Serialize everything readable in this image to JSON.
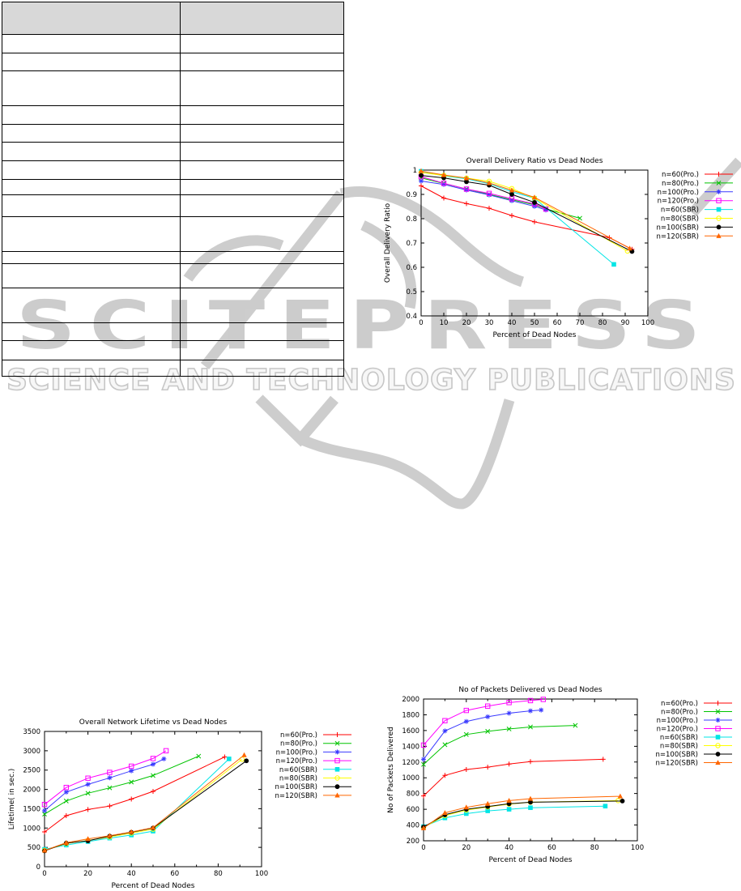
{
  "watermark": {
    "logo_text": "SCITEPRESS",
    "tagline": "SCIENCE AND TECHNOLOGY PUBLICATIONS",
    "color": "#cccccc"
  },
  "table": {
    "note": "empty two-column grid, gray header row, no visible text"
  },
  "chart_data": [
    {
      "type": "line",
      "title": "Overall Delivery Ratio vs Dead Nodes",
      "xlabel": "Percent of Dead Nodes",
      "ylabel": "Overall Delivery Ratio",
      "xlim": [
        0,
        100
      ],
      "ylim": [
        0.4,
        1.0
      ],
      "xticks": [
        0,
        10,
        20,
        30,
        40,
        50,
        60,
        70,
        80,
        90,
        100
      ],
      "xminor": [],
      "yticks": [
        0.4,
        0.5,
        0.6,
        0.7,
        0.8,
        0.9,
        1
      ],
      "grid": false,
      "legend_position": "right-outside",
      "series": [
        {
          "name": "n=60(Pro.)",
          "color": "#ff0000",
          "marker": "plus",
          "points": [
            [
              0,
              0.935
            ],
            [
              10,
              0.885
            ],
            [
              20,
              0.862
            ],
            [
              30,
              0.843
            ],
            [
              40,
              0.813
            ],
            [
              50,
              0.787
            ],
            [
              83,
              0.722
            ],
            [
              93,
              0.674
            ]
          ]
        },
        {
          "name": "n=80(Pro.)",
          "color": "#00c400",
          "marker": "cross",
          "points": [
            [
              0,
              0.968
            ],
            [
              10,
              0.945
            ],
            [
              20,
              0.922
            ],
            [
              30,
              0.9
            ],
            [
              40,
              0.878
            ],
            [
              50,
              0.857
            ],
            [
              55,
              0.84
            ],
            [
              70,
              0.802
            ]
          ]
        },
        {
          "name": "n=100(Pro.)",
          "color": "#3a3aff",
          "marker": "asterisk",
          "points": [
            [
              0,
              0.955
            ],
            [
              10,
              0.941
            ],
            [
              20,
              0.918
            ],
            [
              30,
              0.898
            ],
            [
              40,
              0.874
            ],
            [
              50,
              0.851
            ],
            [
              55,
              0.836
            ]
          ]
        },
        {
          "name": "n=120(Pro.)",
          "color": "#ff00ff",
          "marker": "square-open",
          "points": [
            [
              0,
              0.973
            ],
            [
              10,
              0.946
            ],
            [
              20,
              0.922
            ],
            [
              30,
              0.904
            ],
            [
              40,
              0.882
            ],
            [
              50,
              0.861
            ],
            [
              55,
              0.84
            ]
          ]
        },
        {
          "name": "n=60(SBR)",
          "color": "#00e5e5",
          "marker": "square-filled",
          "points": [
            [
              0,
              0.995
            ],
            [
              10,
              0.976
            ],
            [
              20,
              0.964
            ],
            [
              30,
              0.944
            ],
            [
              40,
              0.911
            ],
            [
              50,
              0.884
            ],
            [
              85,
              0.612
            ]
          ]
        },
        {
          "name": "n=80(SBR)",
          "color": "#ffff00",
          "marker": "circle-open",
          "points": [
            [
              0,
              0.99
            ],
            [
              10,
              0.978
            ],
            [
              20,
              0.967
            ],
            [
              30,
              0.954
            ],
            [
              40,
              0.924
            ],
            [
              50,
              0.884
            ],
            [
              91,
              0.667
            ]
          ]
        },
        {
          "name": "n=100(SBR)",
          "color": "#000000",
          "marker": "circle-filled",
          "points": [
            [
              0,
              0.978
            ],
            [
              10,
              0.968
            ],
            [
              20,
              0.952
            ],
            [
              30,
              0.938
            ],
            [
              40,
              0.9
            ],
            [
              50,
              0.867
            ],
            [
              93,
              0.665
            ]
          ]
        },
        {
          "name": "n=120(SBR)",
          "color": "#ff6600",
          "marker": "triangle-filled",
          "points": [
            [
              0,
              0.996
            ],
            [
              10,
              0.98
            ],
            [
              20,
              0.967
            ],
            [
              30,
              0.947
            ],
            [
              40,
              0.917
            ],
            [
              50,
              0.888
            ],
            [
              92,
              0.678
            ]
          ]
        }
      ]
    },
    {
      "type": "line",
      "title": "Overall Network Lifetime vs Dead Nodes",
      "xlabel": "Percent of Dead Nodes",
      "ylabel": "Lifetime( in sec.)",
      "xlim": [
        0,
        100
      ],
      "ylim": [
        0,
        3500
      ],
      "xticks": [
        0,
        20,
        40,
        60,
        80,
        100
      ],
      "xminor": [
        10,
        30,
        50,
        70,
        90
      ],
      "yticks": [
        0,
        500,
        1000,
        1500,
        2000,
        2500,
        3000,
        3500
      ],
      "grid": false,
      "legend_position": "right-outside",
      "series": [
        {
          "name": "n=60(Pro.)",
          "color": "#ff0000",
          "marker": "plus",
          "points": [
            [
              0,
              900
            ],
            [
              10,
              1320
            ],
            [
              20,
              1480
            ],
            [
              30,
              1570
            ],
            [
              40,
              1750
            ],
            [
              50,
              1950
            ],
            [
              83,
              2840
            ]
          ]
        },
        {
          "name": "n=80(Pro.)",
          "color": "#00c400",
          "marker": "cross",
          "points": [
            [
              0,
              1360
            ],
            [
              10,
              1700
            ],
            [
              20,
              1900
            ],
            [
              30,
              2040
            ],
            [
              40,
              2190
            ],
            [
              50,
              2360
            ],
            [
              71,
              2860
            ]
          ]
        },
        {
          "name": "n=100(Pro.)",
          "color": "#3a3aff",
          "marker": "asterisk",
          "points": [
            [
              0,
              1450
            ],
            [
              10,
              1930
            ],
            [
              20,
              2130
            ],
            [
              30,
              2300
            ],
            [
              40,
              2480
            ],
            [
              50,
              2650
            ],
            [
              55,
              2790
            ]
          ]
        },
        {
          "name": "n=120(Pro.)",
          "color": "#ff00ff",
          "marker": "square-open",
          "points": [
            [
              0,
              1610
            ],
            [
              10,
              2050
            ],
            [
              20,
              2290
            ],
            [
              30,
              2440
            ],
            [
              40,
              2600
            ],
            [
              50,
              2800
            ],
            [
              56,
              3000
            ]
          ]
        },
        {
          "name": "n=60(SBR)",
          "color": "#00e5e5",
          "marker": "square-filled",
          "points": [
            [
              0,
              450
            ],
            [
              10,
              560
            ],
            [
              20,
              650
            ],
            [
              30,
              740
            ],
            [
              40,
              820
            ],
            [
              50,
              920
            ],
            [
              85,
              2790
            ]
          ]
        },
        {
          "name": "n=80(SBR)",
          "color": "#ffff00",
          "marker": "circle-open",
          "points": [
            [
              0,
              420
            ],
            [
              10,
              600
            ],
            [
              20,
              680
            ],
            [
              30,
              770
            ],
            [
              40,
              870
            ],
            [
              50,
              970
            ],
            [
              91,
              2780
            ]
          ]
        },
        {
          "name": "n=100(SBR)",
          "color": "#000000",
          "marker": "circle-filled",
          "points": [
            [
              0,
              410
            ],
            [
              10,
              610
            ],
            [
              20,
              670
            ],
            [
              30,
              790
            ],
            [
              40,
              890
            ],
            [
              50,
              1000
            ],
            [
              93,
              2740
            ]
          ]
        },
        {
          "name": "n=120(SBR)",
          "color": "#ff6600",
          "marker": "triangle-filled",
          "points": [
            [
              0,
              420
            ],
            [
              10,
              620
            ],
            [
              20,
              720
            ],
            [
              30,
              800
            ],
            [
              40,
              900
            ],
            [
              50,
              1010
            ],
            [
              92,
              2890
            ]
          ]
        }
      ]
    },
    {
      "type": "line",
      "title": "No of Packets Delivered vs Dead Nodes",
      "xlabel": "Percent of Dead Nodes",
      "ylabel": "No of Packets Delivered",
      "xlim": [
        0,
        100
      ],
      "ylim": [
        200,
        2000
      ],
      "xticks": [
        0,
        20,
        40,
        60,
        80,
        100
      ],
      "xminor": [
        10,
        30,
        50,
        70,
        90
      ],
      "yticks": [
        200,
        400,
        600,
        800,
        1000,
        1200,
        1400,
        1600,
        1800,
        2000
      ],
      "grid": false,
      "legend_position": "right-outside",
      "series": [
        {
          "name": "n=60(Pro.)",
          "color": "#ff0000",
          "marker": "plus",
          "points": [
            [
              0,
              770
            ],
            [
              10,
              1030
            ],
            [
              20,
              1105
            ],
            [
              30,
              1135
            ],
            [
              40,
              1175
            ],
            [
              50,
              1205
            ],
            [
              84,
              1235
            ]
          ]
        },
        {
          "name": "n=80(Pro.)",
          "color": "#00c400",
          "marker": "cross",
          "points": [
            [
              0,
              1170
            ],
            [
              10,
              1420
            ],
            [
              20,
              1550
            ],
            [
              30,
              1590
            ],
            [
              40,
              1620
            ],
            [
              50,
              1645
            ],
            [
              71,
              1665
            ]
          ]
        },
        {
          "name": "n=100(Pro.)",
          "color": "#3a3aff",
          "marker": "asterisk",
          "points": [
            [
              0,
              1235
            ],
            [
              10,
              1595
            ],
            [
              20,
              1715
            ],
            [
              30,
              1775
            ],
            [
              40,
              1820
            ],
            [
              50,
              1850
            ],
            [
              55,
              1860
            ]
          ]
        },
        {
          "name": "n=120(Pro.)",
          "color": "#ff00ff",
          "marker": "square-open",
          "points": [
            [
              0,
              1415
            ],
            [
              10,
              1725
            ],
            [
              20,
              1855
            ],
            [
              30,
              1910
            ],
            [
              40,
              1955
            ],
            [
              50,
              1980
            ],
            [
              56,
              1995
            ]
          ]
        },
        {
          "name": "n=60(SBR)",
          "color": "#00e5e5",
          "marker": "square-filled",
          "points": [
            [
              0,
              380
            ],
            [
              10,
              490
            ],
            [
              20,
              545
            ],
            [
              30,
              580
            ],
            [
              40,
              600
            ],
            [
              50,
              620
            ],
            [
              85,
              640
            ]
          ]
        },
        {
          "name": "n=80(SBR)",
          "color": "#ffff00",
          "marker": "circle-open",
          "points": [
            [
              0,
              370
            ],
            [
              10,
              520
            ],
            [
              20,
              590
            ],
            [
              30,
              630
            ],
            [
              40,
              665
            ],
            [
              50,
              690
            ],
            [
              91,
              710
            ]
          ]
        },
        {
          "name": "n=100(SBR)",
          "color": "#000000",
          "marker": "circle-filled",
          "points": [
            [
              0,
              375
            ],
            [
              10,
              530
            ],
            [
              20,
              600
            ],
            [
              30,
              635
            ],
            [
              40,
              670
            ],
            [
              50,
              690
            ],
            [
              93,
              705
            ]
          ]
        },
        {
          "name": "n=120(SBR)",
          "color": "#ff6600",
          "marker": "triangle-filled",
          "points": [
            [
              0,
              360
            ],
            [
              10,
              555
            ],
            [
              20,
              625
            ],
            [
              30,
              670
            ],
            [
              40,
              710
            ],
            [
              50,
              735
            ],
            [
              92,
              765
            ]
          ]
        }
      ]
    }
  ]
}
